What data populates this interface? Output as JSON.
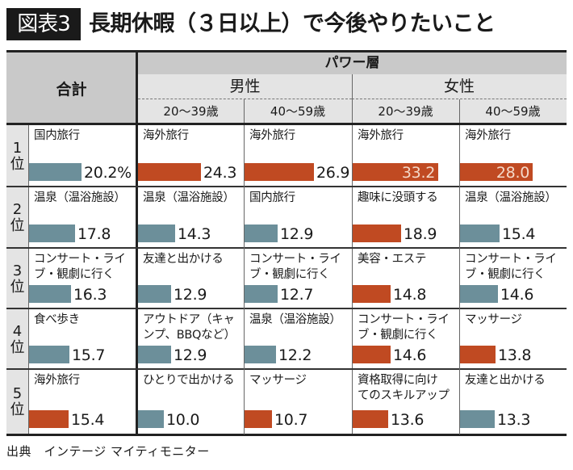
{
  "title": {
    "badge": "図表3",
    "text": "長期休暇（３日以上）で今後やりたいこと"
  },
  "colors": {
    "teal": "#6c8f9a",
    "orange": "#c04a22",
    "header_dark": "#c9c9c9",
    "header_light": "#e4e4e4"
  },
  "header": {
    "total": "合計",
    "power_group": "パワー層",
    "genders": [
      "男性",
      "女性"
    ],
    "ages": [
      "20〜39歳",
      "40〜59歳",
      "20〜39歳",
      "40〜59歳"
    ]
  },
  "footer": "出典　インテージ マイティモニター",
  "chart_data": {
    "type": "table",
    "title": "長期休暇（３日以上）で今後やりたいこと",
    "unit": "%",
    "columns": [
      "合計",
      "パワー層 男性 20〜39歳",
      "パワー層 男性 40〜59歳",
      "パワー層 女性 20〜39歳",
      "パワー層 女性 40〜59歳"
    ],
    "rank_labels": [
      {
        "num": "1",
        "suffix": "位"
      },
      {
        "num": "2",
        "suffix": "位"
      },
      {
        "num": "3",
        "suffix": "位"
      },
      {
        "num": "4",
        "suffix": "位"
      },
      {
        "num": "5",
        "suffix": "位"
      }
    ],
    "rows": [
      [
        {
          "label": "国内旅行",
          "value": 20.2,
          "display": "20.2%",
          "color": "teal"
        },
        {
          "label": "海外旅行",
          "value": 24.3,
          "display": "24.3",
          "color": "orange"
        },
        {
          "label": "海外旅行",
          "value": 26.9,
          "display": "26.9",
          "color": "orange"
        },
        {
          "label": "海外旅行",
          "value": 33.2,
          "display": "33.2",
          "color": "orange",
          "inside": true
        },
        {
          "label": "海外旅行",
          "value": 28.0,
          "display": "28.0",
          "color": "orange",
          "inside": true
        }
      ],
      [
        {
          "label": "温泉（温浴施設）",
          "value": 17.8,
          "display": "17.8",
          "color": "teal"
        },
        {
          "label": "温泉（温浴施設）",
          "value": 14.3,
          "display": "14.3",
          "color": "teal"
        },
        {
          "label": "国内旅行",
          "value": 12.9,
          "display": "12.9",
          "color": "teal"
        },
        {
          "label": "趣味に没頭する",
          "value": 18.9,
          "display": "18.9",
          "color": "orange"
        },
        {
          "label": "温泉（温浴施設）",
          "value": 15.4,
          "display": "15.4",
          "color": "teal"
        }
      ],
      [
        {
          "label": "コンサート・ライ\nブ・観劇に行く",
          "value": 16.3,
          "display": "16.3",
          "color": "teal"
        },
        {
          "label": "友達と出かける",
          "value": 12.9,
          "display": "12.9",
          "color": "teal"
        },
        {
          "label": "コンサート・ライ\nブ・観劇に行く",
          "value": 12.7,
          "display": "12.7",
          "color": "teal"
        },
        {
          "label": "美容・エステ",
          "value": 14.8,
          "display": "14.8",
          "color": "orange"
        },
        {
          "label": "コンサート・ライ\nブ・観劇に行く",
          "value": 14.6,
          "display": "14.6",
          "color": "teal"
        }
      ],
      [
        {
          "label": "食べ歩き",
          "value": 15.7,
          "display": "15.7",
          "color": "teal"
        },
        {
          "label": "アウトドア（キャ\nンプ、BBQなど）",
          "value": 12.9,
          "display": "12.9",
          "color": "teal"
        },
        {
          "label": "温泉（温浴施設）",
          "value": 12.2,
          "display": "12.2",
          "color": "teal"
        },
        {
          "label": "コンサート・ライ\nブ・観劇に行く",
          "value": 14.6,
          "display": "14.6",
          "color": "orange"
        },
        {
          "label": "マッサージ",
          "value": 13.8,
          "display": "13.8",
          "color": "orange"
        }
      ],
      [
        {
          "label": "海外旅行",
          "value": 15.4,
          "display": "15.4",
          "color": "orange"
        },
        {
          "label": "ひとりで出かける",
          "value": 10.0,
          "display": "10.0",
          "color": "teal"
        },
        {
          "label": "マッサージ",
          "value": 10.7,
          "display": "10.7",
          "color": "orange"
        },
        {
          "label": "資格取得に向け\nてのスキルアップ",
          "value": 13.6,
          "display": "13.6",
          "color": "orange"
        },
        {
          "label": "友達と出かける",
          "value": 13.3,
          "display": "13.3",
          "color": "teal"
        }
      ]
    ]
  }
}
